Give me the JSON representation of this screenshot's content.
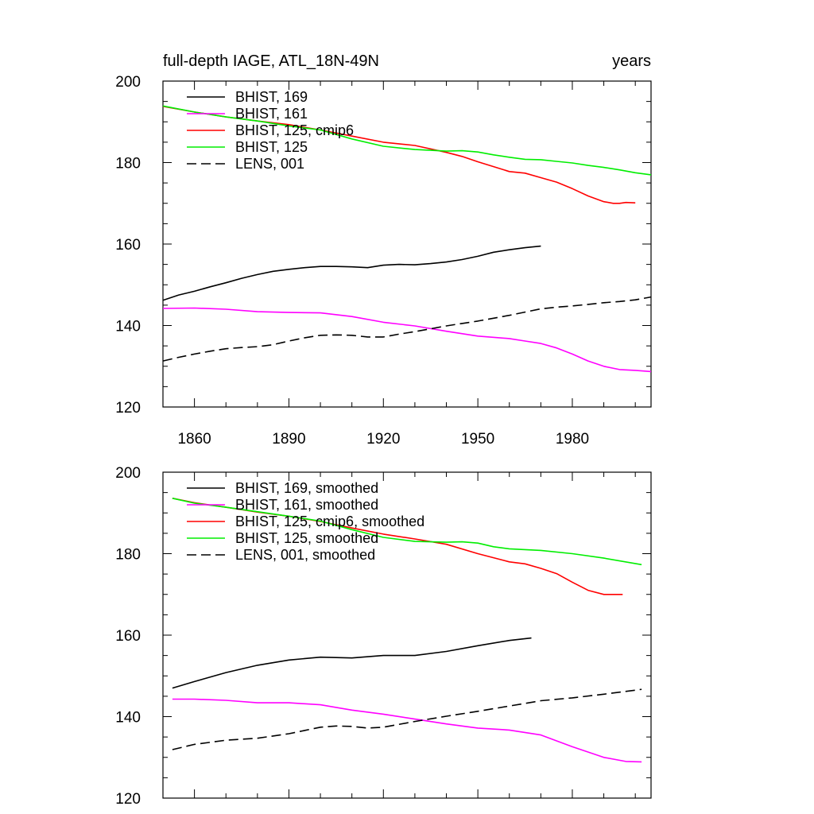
{
  "chart_data": [
    {
      "type": "line",
      "title": "full-depth IAGE, ATL_18N-49N",
      "units": "years",
      "xlabel": "",
      "ylabel": "",
      "xlim": [
        1850,
        2005
      ],
      "ylim": [
        120,
        200
      ],
      "xticks": [
        1860,
        1890,
        1920,
        1950,
        1980
      ],
      "yticks": [
        120,
        140,
        160,
        180,
        200
      ],
      "legend_position": "top-left",
      "series": [
        {
          "name": "BHIST, 169",
          "color": "#000000",
          "dash": "solid",
          "x": [
            1850,
            1855,
            1860,
            1865,
            1870,
            1875,
            1880,
            1885,
            1890,
            1895,
            1900,
            1905,
            1910,
            1915,
            1920,
            1925,
            1930,
            1935,
            1940,
            1945,
            1950,
            1955,
            1960,
            1965,
            1970
          ],
          "y": [
            146.2,
            147.5,
            148.4,
            149.5,
            150.5,
            151.6,
            152.5,
            153.3,
            153.8,
            154.2,
            154.5,
            154.5,
            154.4,
            154.2,
            154.8,
            155.0,
            154.9,
            155.2,
            155.6,
            156.2,
            157.0,
            158.0,
            158.6,
            159.1,
            159.5
          ]
        },
        {
          "name": "BHIST, 161",
          "color": "#ff00ff",
          "dash": "solid",
          "x": [
            1850,
            1860,
            1870,
            1880,
            1890,
            1900,
            1910,
            1920,
            1930,
            1940,
            1950,
            1960,
            1965,
            1970,
            1975,
            1980,
            1985,
            1990,
            1995,
            2000,
            2005
          ],
          "y": [
            144.2,
            144.3,
            144.0,
            143.4,
            143.2,
            143.1,
            142.2,
            140.8,
            139.9,
            138.6,
            137.4,
            136.8,
            136.2,
            135.6,
            134.5,
            133.0,
            131.3,
            130.0,
            129.2,
            129.0,
            128.7
          ]
        },
        {
          "name": "BHIST, 125, cmip6",
          "color": "#ff0000",
          "dash": "solid",
          "x": [
            1850,
            1860,
            1870,
            1880,
            1890,
            1900,
            1910,
            1920,
            1930,
            1940,
            1945,
            1950,
            1955,
            1960,
            1965,
            1970,
            1975,
            1980,
            1985,
            1990,
            1993,
            1995,
            1997,
            2000
          ],
          "y": [
            193.8,
            192.4,
            191.2,
            190.2,
            189.3,
            188.0,
            186.5,
            185.0,
            184.2,
            182.5,
            181.5,
            180.2,
            179.0,
            177.8,
            177.4,
            176.3,
            175.2,
            173.6,
            171.8,
            170.4,
            170.0,
            170.0,
            170.2,
            170.1
          ]
        },
        {
          "name": "BHIST, 125",
          "color": "#00ee00",
          "dash": "solid",
          "x": [
            1850,
            1860,
            1870,
            1880,
            1890,
            1900,
            1910,
            1920,
            1930,
            1940,
            1945,
            1950,
            1955,
            1960,
            1965,
            1970,
            1975,
            1980,
            1985,
            1990,
            1995,
            2000,
            2005
          ],
          "y": [
            193.9,
            192.4,
            191.2,
            190.2,
            189.0,
            188.0,
            185.8,
            184.0,
            183.2,
            182.8,
            182.9,
            182.6,
            181.9,
            181.3,
            180.8,
            180.7,
            180.3,
            179.9,
            179.3,
            178.8,
            178.2,
            177.5,
            177.0
          ]
        },
        {
          "name": "LENS, 001",
          "color": "#000000",
          "dash": "dashed",
          "x": [
            1850,
            1855,
            1860,
            1865,
            1870,
            1875,
            1880,
            1885,
            1890,
            1895,
            1900,
            1905,
            1910,
            1915,
            1920,
            1925,
            1930,
            1935,
            1940,
            1945,
            1950,
            1955,
            1960,
            1965,
            1970,
            1975,
            1980,
            1985,
            1990,
            1995,
            2000,
            2005
          ],
          "y": [
            131.3,
            132.2,
            133.0,
            133.7,
            134.3,
            134.6,
            134.8,
            135.3,
            136.2,
            137.0,
            137.6,
            137.7,
            137.6,
            137.2,
            137.2,
            137.9,
            138.5,
            139.2,
            139.9,
            140.5,
            141.1,
            141.8,
            142.5,
            143.3,
            144.1,
            144.5,
            144.8,
            145.2,
            145.6,
            145.9,
            146.3,
            147.0
          ]
        }
      ]
    },
    {
      "type": "line",
      "title": "",
      "xlabel": "",
      "ylabel": "",
      "xlim": [
        1850,
        2005
      ],
      "ylim": [
        120,
        200
      ],
      "yticks": [
        120,
        140,
        160,
        180,
        200
      ],
      "legend_position": "top-left",
      "series": [
        {
          "name": "BHIST, 169, smoothed",
          "color": "#000000",
          "dash": "solid",
          "x": [
            1853,
            1860,
            1870,
            1880,
            1890,
            1900,
            1910,
            1920,
            1930,
            1940,
            1950,
            1960,
            1967
          ],
          "y": [
            147.0,
            148.6,
            150.8,
            152.6,
            153.9,
            154.6,
            154.4,
            155.0,
            155.0,
            156.0,
            157.4,
            158.7,
            159.3
          ]
        },
        {
          "name": "BHIST, 161, smoothed",
          "color": "#ff00ff",
          "dash": "solid",
          "x": [
            1853,
            1860,
            1870,
            1880,
            1890,
            1900,
            1910,
            1920,
            1930,
            1940,
            1950,
            1960,
            1970,
            1980,
            1990,
            1997,
            2002
          ],
          "y": [
            144.3,
            144.3,
            144.0,
            143.4,
            143.4,
            142.9,
            141.6,
            140.6,
            139.4,
            138.2,
            137.2,
            136.7,
            135.5,
            132.6,
            130.0,
            129.0,
            128.9
          ]
        },
        {
          "name": "BHIST, 125, cmip6, smoothed",
          "color": "#ff0000",
          "dash": "solid",
          "x": [
            1853,
            1860,
            1870,
            1880,
            1890,
            1900,
            1910,
            1920,
            1930,
            1940,
            1950,
            1960,
            1965,
            1970,
            1975,
            1980,
            1985,
            1990,
            1996
          ],
          "y": [
            193.6,
            192.5,
            191.4,
            190.2,
            189.2,
            187.9,
            186.3,
            184.8,
            183.6,
            182.3,
            180.0,
            178.0,
            177.5,
            176.4,
            175.1,
            173.0,
            171.0,
            170.0,
            170.0
          ]
        },
        {
          "name": "BHIST, 125, smoothed",
          "color": "#00ee00",
          "dash": "solid",
          "x": [
            1853,
            1860,
            1870,
            1880,
            1890,
            1900,
            1910,
            1920,
            1930,
            1940,
            1945,
            1950,
            1955,
            1960,
            1970,
            1980,
            1990,
            2002
          ],
          "y": [
            193.6,
            192.4,
            191.4,
            190.3,
            189.2,
            188.0,
            185.9,
            184.0,
            183.0,
            182.8,
            182.9,
            182.6,
            181.7,
            181.2,
            180.8,
            180.0,
            178.9,
            177.3
          ]
        },
        {
          "name": "LENS, 001, smoothed",
          "color": "#000000",
          "dash": "dashed",
          "x": [
            1853,
            1860,
            1870,
            1880,
            1890,
            1900,
            1905,
            1910,
            1915,
            1920,
            1930,
            1940,
            1950,
            1960,
            1970,
            1980,
            1990,
            2002
          ],
          "y": [
            131.9,
            133.2,
            134.2,
            134.7,
            135.8,
            137.4,
            137.7,
            137.6,
            137.2,
            137.4,
            138.8,
            140.1,
            141.3,
            142.6,
            143.9,
            144.6,
            145.5,
            146.7
          ]
        }
      ]
    }
  ]
}
